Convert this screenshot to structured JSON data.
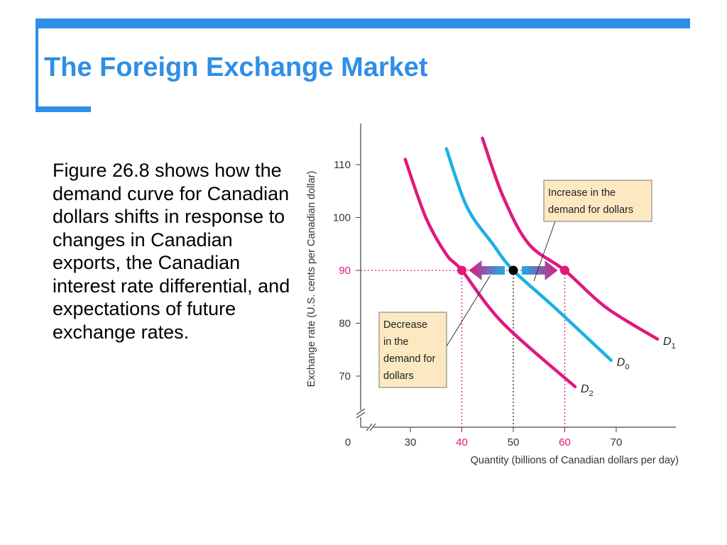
{
  "slide": {
    "title": "The Foreign Exchange Market",
    "body": "Figure 26.8 shows how the demand curve for Canadian dollars shifts in response to changes in Canadian exports, the Canadian interest rate differential, and expectations of future exchange rates."
  },
  "colors": {
    "accent": "#2f8ee8",
    "demand_shifted": "#e0197d",
    "demand_original": "#1ab0e6",
    "callout_fill": "#fce9c2"
  },
  "chart_data": {
    "type": "line",
    "xlabel": "Quantity (billions of Canadian dollars per day)",
    "ylabel": "Exchange rate (U.S. cents per Canadian dollar)",
    "x_ticks": [
      "0",
      "30",
      "40",
      "50",
      "60",
      "70"
    ],
    "y_ticks": [
      "70",
      "80",
      "90",
      "100",
      "110"
    ],
    "xlim": [
      25,
      80
    ],
    "ylim": [
      63,
      118
    ],
    "axis_break": true,
    "series": [
      {
        "name": "D1",
        "label_main": "D",
        "label_sub": "1",
        "color": "#e0197d",
        "points": [
          [
            44,
            115
          ],
          [
            48,
            104
          ],
          [
            53,
            95
          ],
          [
            60,
            90
          ],
          [
            68,
            83
          ],
          [
            78,
            77
          ]
        ]
      },
      {
        "name": "D0",
        "label_main": "D",
        "label_sub": "0",
        "color": "#1ab0e6",
        "points": [
          [
            37,
            113
          ],
          [
            41,
            102
          ],
          [
            46,
            95
          ],
          [
            50,
            90
          ],
          [
            58,
            83
          ],
          [
            69,
            73
          ]
        ]
      },
      {
        "name": "D2",
        "label_main": "D",
        "label_sub": "2",
        "color": "#e0197d",
        "points": [
          [
            29,
            111
          ],
          [
            33,
            100
          ],
          [
            37,
            93
          ],
          [
            40,
            90
          ],
          [
            48,
            80
          ],
          [
            62,
            68
          ]
        ]
      }
    ],
    "equilibrium_points": [
      {
        "x": 40,
        "y": 90,
        "color": "#e0197d"
      },
      {
        "x": 50,
        "y": 90,
        "color": "#000000"
      },
      {
        "x": 60,
        "y": 90,
        "color": "#e0197d"
      }
    ],
    "highlighted_ticks": {
      "x": [
        "40",
        "60"
      ],
      "y": [
        "90"
      ],
      "color": "#e0197d"
    },
    "annotations": {
      "increase": [
        "Increase in the",
        "demand for dollars"
      ],
      "decrease": [
        "Decrease",
        "in the",
        "demand for",
        "dollars"
      ]
    }
  }
}
